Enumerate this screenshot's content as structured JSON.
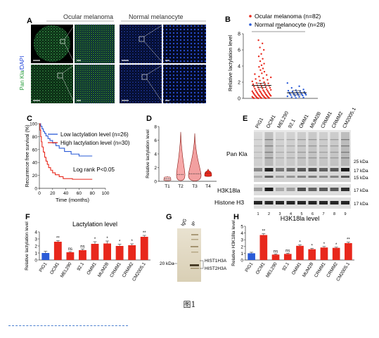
{
  "figure_caption": "图1",
  "colors": {
    "red": "#e8281c",
    "blue": "#2a5bd7",
    "green": "#35c24a",
    "dapi": "#1a3fd8"
  },
  "panelA": {
    "letter": "A",
    "col1": "Ocular melanoma",
    "col2": "Normal melanocyte",
    "ylabel_green": "Pan Kla",
    "ylabel_blue": "/DAPI"
  },
  "panelB": {
    "letter": "B",
    "legend": [
      "Ocular melanoma (n=82)",
      "Normal melanocyte (n=28)"
    ],
    "sig": "**",
    "ylabel": "Relative lactylation level"
  },
  "panelC": {
    "letter": "C",
    "legend": [
      "Low lactylation level (n=26)",
      "High lactylation level (n=30)"
    ],
    "annotation": "Log rank P<0.05"
  },
  "panelD": {
    "letter": "D",
    "ylabel": "Relative lactylation level"
  },
  "panelE": {
    "letter": "E",
    "lanes": [
      "PIG1",
      "OCM1",
      "MEL290",
      "92.1",
      "OMM1",
      "MUM2B",
      "CRMM1",
      "CRMM2",
      "CM2005.1"
    ],
    "lane_numbers": [
      "1",
      "2",
      "3",
      "4",
      "5",
      "6",
      "7",
      "8",
      "9"
    ],
    "labels": [
      "Pan Kla",
      "H3K18la",
      "Histone H3"
    ],
    "markers": [
      "25 kDa",
      "17 kDa",
      "15 kDa",
      "17 kDa",
      "17 kDa"
    ]
  },
  "panelG": {
    "letter": "G",
    "lanes": [
      "IgG",
      "IP"
    ],
    "marker": "20 kDa",
    "bands": [
      "HIST1H3A",
      "HIST2H3A"
    ]
  },
  "chart_data": [
    {
      "panel": "B",
      "type": "scatter",
      "series": [
        {
          "name": "Ocular melanoma (n=82)",
          "color": "#e8281c"
        },
        {
          "name": "Normal melanocyte (n=28)",
          "color": "#2a5bd7"
        }
      ],
      "categories": [
        "Ocular melanoma",
        "Normal melanocyte"
      ],
      "means": [
        1.6,
        0.7
      ],
      "points": {
        "Ocular melanoma": [
          7.2,
          6.8,
          6.3,
          6.0,
          5.5,
          5.2,
          4.9,
          4.6,
          4.3,
          4.1,
          3.9,
          3.7,
          3.5,
          3.3,
          3.1,
          3.0,
          2.9,
          2.7,
          2.6,
          2.5,
          2.4,
          2.3,
          2.2,
          2.1,
          2.0,
          1.9,
          1.85,
          1.8,
          1.75,
          1.7,
          1.6,
          1.55,
          1.5,
          1.45,
          1.4,
          1.35,
          1.3,
          1.25,
          1.2,
          1.15,
          1.1,
          1.05,
          1.0,
          0.98,
          0.95,
          0.9,
          0.88,
          0.85,
          0.8,
          0.78,
          0.75,
          0.7,
          0.68,
          0.65,
          0.6,
          0.58,
          0.55,
          0.5,
          0.48,
          0.45,
          0.42,
          0.4,
          0.38,
          0.35,
          0.32,
          0.3,
          0.28,
          0.25,
          0.22,
          0.2,
          0.18,
          0.15,
          0.12,
          0.1,
          0.08,
          0.06,
          0.05,
          0.04,
          0.03,
          0.02,
          0.015,
          0.01
        ],
        "Normal melanocyte": [
          1.9,
          1.5,
          1.3,
          1.1,
          1.0,
          0.95,
          0.9,
          0.85,
          0.8,
          0.75,
          0.7,
          0.68,
          0.65,
          0.6,
          0.58,
          0.55,
          0.5,
          0.48,
          0.45,
          0.42,
          0.4,
          0.35,
          0.3,
          0.25,
          0.2,
          0.15,
          0.1,
          0.05
        ]
      },
      "ylim": [
        0,
        8
      ],
      "yticks": [
        "0",
        "2",
        "4",
        "6",
        "8"
      ]
    },
    {
      "panel": "C",
      "type": "line",
      "xlabel": "Time (months)",
      "ylabel": "Recurrence free survival (%)",
      "xlim": [
        0,
        100
      ],
      "ylim": [
        0,
        100
      ],
      "xticks": [
        "0",
        "20",
        "40",
        "60",
        "80",
        "100"
      ],
      "yticks": [
        "0",
        "20",
        "40",
        "60",
        "80",
        "100"
      ],
      "series": [
        {
          "name": "Low lactylation level (n=26)",
          "color": "#2a5bd7",
          "x": [
            0,
            2,
            4,
            6,
            8,
            10,
            13,
            16,
            20,
            25,
            30,
            38,
            48,
            60,
            80
          ],
          "y": [
            100,
            96,
            92,
            88,
            85,
            81,
            77,
            74,
            70,
            66,
            62,
            57,
            53,
            50,
            50
          ]
        },
        {
          "name": "High lactylation level (n=30)",
          "color": "#e8281c",
          "x": [
            0,
            1,
            2,
            3,
            4,
            6,
            8,
            10,
            12,
            14,
            17,
            20,
            24,
            30,
            36,
            50,
            80
          ],
          "y": [
            100,
            90,
            80,
            72,
            64,
            56,
            48,
            42,
            37,
            32,
            28,
            24,
            21,
            18,
            15,
            14,
            14
          ]
        }
      ]
    },
    {
      "panel": "D",
      "type": "violin",
      "categories": [
        "T1",
        "T2",
        "T3",
        "T4"
      ],
      "ylabel": "Relative lactylation level",
      "ylim": [
        0,
        8
      ],
      "yticks": [
        "0",
        "2",
        "4",
        "6",
        "8"
      ],
      "ranges": [
        [
          0.1,
          0.7
        ],
        [
          0.1,
          7.2
        ],
        [
          0.05,
          7.0
        ],
        [
          0.7,
          1.8
        ]
      ],
      "medians": [
        0.35,
        1.0,
        1.1,
        1.2
      ]
    },
    {
      "panel": "F",
      "type": "bar",
      "title": "Lactylation level",
      "ylabel": "Relative lactylation level",
      "categories": [
        "PIG1",
        "OCM1",
        "MEL290",
        "92.1",
        "OMM1",
        "MUM2B",
        "CRMM1",
        "CRMM2",
        "CM2005.1"
      ],
      "values": [
        1.0,
        2.6,
        1.1,
        1.4,
        2.3,
        2.35,
        2.0,
        2.1,
        3.3
      ],
      "errors": [
        0.25,
        0.15,
        0.1,
        0.15,
        0.3,
        0.35,
        0.25,
        0.2,
        0.2
      ],
      "significance": [
        "",
        "**",
        "ns",
        "ns",
        "*",
        "*",
        "*",
        "*",
        "**"
      ],
      "ylim": [
        0,
        4
      ],
      "yticks": [
        "0",
        "1",
        "2",
        "3",
        "4"
      ]
    },
    {
      "panel": "H",
      "type": "bar",
      "title": "H3K18la level",
      "ylabel": "Relative H3K18la level",
      "categories": [
        "PIG1",
        "OCM1",
        "MEL290",
        "92.1",
        "OMM1",
        "MUM2B",
        "CRMM1",
        "CRMM2",
        "CM2005.1"
      ],
      "values": [
        1.0,
        3.7,
        0.8,
        0.9,
        2.1,
        1.6,
        1.85,
        1.8,
        2.5
      ],
      "errors": [
        0.15,
        0.2,
        0.1,
        0.1,
        0.15,
        0.12,
        0.15,
        0.1,
        0.15
      ],
      "significance": [
        "",
        "**",
        "ns",
        "ns",
        "*",
        "*",
        "*",
        "*",
        "**"
      ],
      "ylim": [
        0,
        5
      ],
      "yticks": [
        "0",
        "1",
        "2",
        "3",
        "4",
        "5"
      ]
    }
  ]
}
